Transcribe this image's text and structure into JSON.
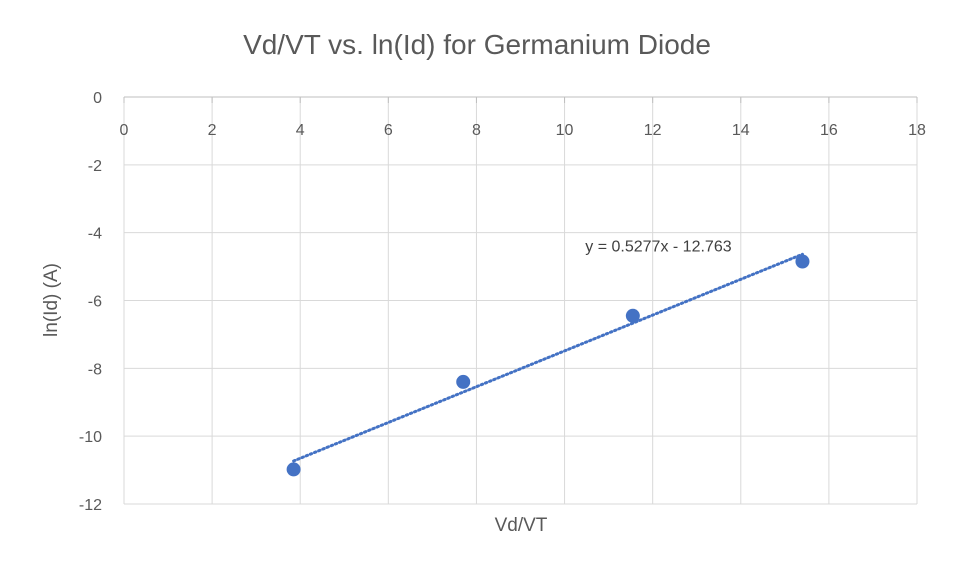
{
  "chart_data": {
    "type": "scatter",
    "title": "Vd/VT vs. ln(Id) for Germanium Diode",
    "xlabel": "Vd/VT",
    "ylabel": "ln(Id) (A)",
    "xlim": [
      0,
      18
    ],
    "ylim": [
      -12,
      0
    ],
    "x_ticks": [
      "0",
      "2",
      "4",
      "6",
      "8",
      "10",
      "12",
      "14",
      "16",
      "18"
    ],
    "y_ticks": [
      "0",
      "-2",
      "-4",
      "-6",
      "-8",
      "-10",
      "-12"
    ],
    "grid": true,
    "series": [
      {
        "points": [
          {
            "x": 3.85,
            "y": -10.98
          },
          {
            "x": 7.7,
            "y": -8.4
          },
          {
            "x": 11.55,
            "y": -6.45
          },
          {
            "x": 15.4,
            "y": -4.85
          }
        ],
        "color": "#4472c4"
      }
    ],
    "trendline": {
      "type": "linear",
      "slope": 0.5277,
      "intercept": -12.763,
      "x_range": [
        3.85,
        15.4
      ],
      "label": "y = 0.5277x - 12.763",
      "color": "#4472c4",
      "style": "dotted"
    }
  }
}
